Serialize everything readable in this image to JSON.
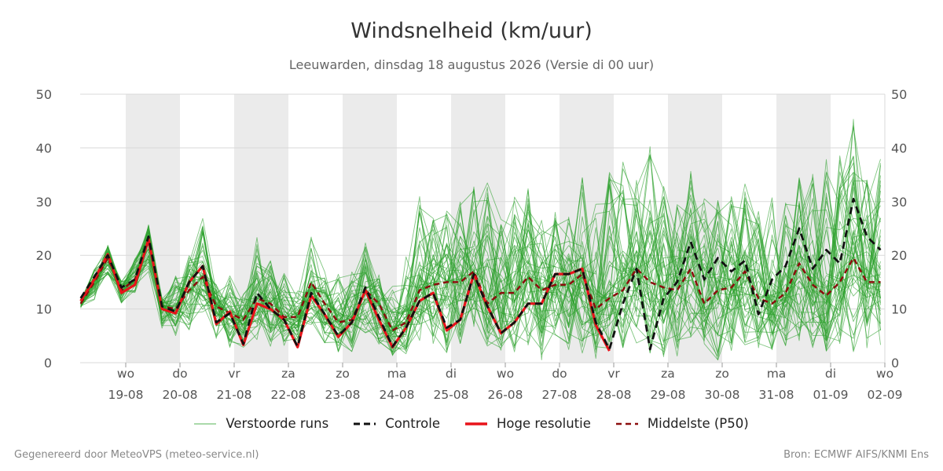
{
  "header": {
    "title": "Windsnelheid (km/uur)",
    "subtitle": "Leeuwarden, dinsdag 18 augustus 2026 (Versie di 00 uur)"
  },
  "legend": {
    "items": [
      {
        "label": "Verstoorde runs",
        "color": "#2ca02c",
        "style": "solid-thin"
      },
      {
        "label": "Controle",
        "color": "#111111",
        "style": "dashed"
      },
      {
        "label": "Hoge resolutie",
        "color": "#e8131a",
        "style": "solid"
      },
      {
        "label": "Middelste (P50)",
        "color": "#8b0d0d",
        "style": "dashed"
      }
    ]
  },
  "footer": {
    "left": "Gegenereerd door MeteoVPS (meteo-service.nl)",
    "right": "Bron: ECMWF AIFS/KNMI Ens"
  },
  "colors": {
    "ensemble": "#2ca02c",
    "control": "#111111",
    "high_res": "#e8131a",
    "median": "#8b0d0d",
    "shade": "#ebebeb",
    "grid": "#d9d9d9"
  },
  "chart_data": {
    "type": "line",
    "ylim": [
      0,
      50
    ],
    "y_ticks": [
      0,
      10,
      20,
      30,
      40,
      50
    ],
    "y_axis_both_sides": true,
    "grid": true,
    "legend_placement": "bottom",
    "x_start_day": 0,
    "x_end_day": 15.4,
    "x_ticks": [
      {
        "day": "wo",
        "date": "19-08"
      },
      {
        "day": "do",
        "date": "20-08"
      },
      {
        "day": "vr",
        "date": "21-08"
      },
      {
        "day": "za",
        "date": "22-08"
      },
      {
        "day": "zo",
        "date": "23-08"
      },
      {
        "day": "ma",
        "date": "24-08"
      },
      {
        "day": "di",
        "date": "25-08"
      },
      {
        "day": "wo",
        "date": "26-08"
      },
      {
        "day": "do",
        "date": "27-08"
      },
      {
        "day": "vr",
        "date": "28-08"
      },
      {
        "day": "za",
        "date": "29-08"
      },
      {
        "day": "zo",
        "date": "30-08"
      },
      {
        "day": "ma",
        "date": "31-08"
      },
      {
        "day": "di",
        "date": "01-09"
      },
      {
        "day": "wo",
        "date": "02-09"
      }
    ],
    "shaded_days": [
      {
        "from": "19-08",
        "to": "20-08"
      },
      {
        "from": "21-08",
        "to": "22-08"
      },
      {
        "from": "23-08",
        "to": "24-08"
      },
      {
        "from": "25-08",
        "to": "26-08"
      },
      {
        "from": "27-08",
        "to": "28-08"
      },
      {
        "from": "29-08",
        "to": "30-08"
      },
      {
        "from": "31-08",
        "to": "01-09"
      }
    ],
    "series": [
      {
        "name": "Hoge resolutie",
        "x_step_hours": 6,
        "values": [
          11.5,
          15.5,
          20.2,
          13,
          14.5,
          23,
          10,
          9.2,
          15,
          18,
          7.2,
          9.5,
          3.3,
          11,
          10,
          8,
          2.9,
          12.5,
          9,
          4.8,
          7.5,
          13.5,
          8,
          2.9,
          6.5,
          11.5,
          13,
          6,
          8,
          16.5,
          10.5,
          5.5,
          7.5,
          11,
          11,
          16.5,
          16.5,
          17.5,
          7,
          2.2
        ]
      },
      {
        "name": "Controle",
        "x_step_hours": 6,
        "values": [
          12,
          16,
          20,
          14,
          15.5,
          23.5,
          10.5,
          9.5,
          15,
          18,
          7.5,
          9.2,
          3.5,
          13,
          10,
          8,
          3,
          13,
          9,
          5,
          7.5,
          14,
          8.5,
          3,
          6.5,
          11.5,
          13,
          6.5,
          8,
          16.5,
          10.5,
          5.5,
          7.5,
          11,
          11,
          16.5,
          16.5,
          17.5,
          7.5,
          2.5,
          11,
          17.5,
          2.5,
          12,
          15,
          22.5,
          15.5,
          19.5,
          17,
          19,
          9,
          15.5,
          18,
          25,
          17.5,
          21,
          18.5,
          30.5,
          23.5,
          21
        ]
      },
      {
        "name": "Middelste (P50)",
        "x_step_hours": 6,
        "values": [
          11,
          15,
          19.5,
          13.5,
          15.5,
          22.5,
          10.5,
          10,
          13.5,
          16,
          10.5,
          9.2,
          8,
          12,
          11,
          8.5,
          8.5,
          15,
          11,
          7.5,
          8,
          13.5,
          11,
          6,
          7.5,
          13.5,
          14.5,
          15,
          15,
          17,
          11,
          13,
          13,
          16,
          13.5,
          14.5,
          14.5,
          16.5,
          10,
          12,
          13.5,
          17.5,
          15,
          14,
          13.5,
          17.5,
          11,
          13.5,
          14,
          17,
          12,
          11,
          13,
          18.5,
          14.5,
          12.5,
          15,
          19.5,
          15,
          15
        ]
      }
    ],
    "ensemble": {
      "name": "Verstoorde runs",
      "member_count": 50,
      "x_step_hours": 6,
      "median": [
        11,
        15,
        19.5,
        13.5,
        15.5,
        22.5,
        10.5,
        10,
        13.5,
        16,
        10.5,
        9.2,
        8,
        12,
        11,
        8.5,
        8.5,
        15,
        11,
        7.5,
        8,
        13.5,
        11,
        6,
        7.5,
        13.5,
        14.5,
        15,
        15,
        17,
        11,
        13,
        13,
        16,
        13.5,
        14.5,
        14.5,
        16.5,
        10,
        12,
        13.5,
        17.5,
        15,
        14,
        13.5,
        17.5,
        11,
        13.5,
        14,
        17,
        12,
        11,
        13,
        18.5,
        14.5,
        12.5,
        15,
        19.5,
        15,
        15
      ],
      "max_values": [
        13.5,
        22,
        25.5,
        17,
        23.5,
        27.5,
        12.5,
        17.5,
        20.5,
        27,
        15,
        16.5,
        14,
        23.5,
        19,
        17,
        15.5,
        24,
        18,
        16.5,
        17.5,
        24,
        17,
        14.5,
        20,
        31,
        27,
        28.5,
        30,
        33,
        35,
        29,
        31,
        32.5,
        29.5,
        30,
        30,
        34.5,
        30,
        36.5,
        38,
        35,
        41,
        33,
        30,
        37.5,
        33,
        31,
        32,
        34,
        30,
        35,
        30,
        34.5,
        37,
        38,
        39,
        46,
        35,
        38
      ],
      "min_values": [
        7.5,
        5,
        12,
        8.5,
        11,
        13,
        5,
        3.5,
        5,
        9,
        4,
        2.5,
        2.5,
        4,
        3,
        3,
        2.5,
        6.5,
        3,
        2,
        1.5,
        4.5,
        2.5,
        1,
        1.5,
        4,
        3.5,
        1.5,
        2.5,
        6,
        2.5,
        1,
        2,
        3,
        0.5,
        4,
        2,
        1,
        0.5,
        1,
        2,
        3,
        1,
        0.5,
        1,
        4,
        2,
        0.5,
        1,
        2.5,
        2,
        2,
        3,
        4,
        2.5,
        2,
        3.5,
        0.5,
        2,
        3
      ]
    }
  }
}
